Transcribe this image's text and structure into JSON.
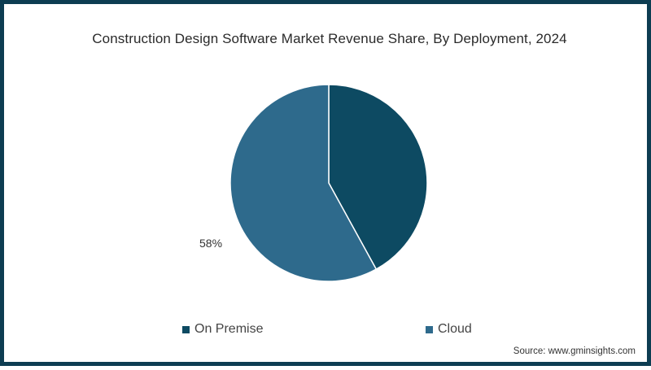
{
  "title": "Construction Design Software Market Revenue Share, By Deployment, 2024",
  "source": "Source: www.gminsights.com",
  "colors": {
    "border": "#0d3d52",
    "on_premise": "#0d4a62",
    "cloud": "#2e6a8c"
  },
  "legend": [
    {
      "label": "On Premise",
      "color": "#0d4a62"
    },
    {
      "label": "Cloud",
      "color": "#2e6a8c"
    }
  ],
  "labels": {
    "cloud_pct": "58%"
  },
  "chart_data": {
    "type": "pie",
    "title": "Construction Design Software Market Revenue Share, By Deployment, 2024",
    "categories": [
      "On Premise",
      "Cloud"
    ],
    "values": [
      42,
      58
    ],
    "unit": "%",
    "data_labels": {
      "Cloud": "58%"
    },
    "legend_position": "bottom",
    "start_angle": "12 o'clock, clockwise"
  }
}
